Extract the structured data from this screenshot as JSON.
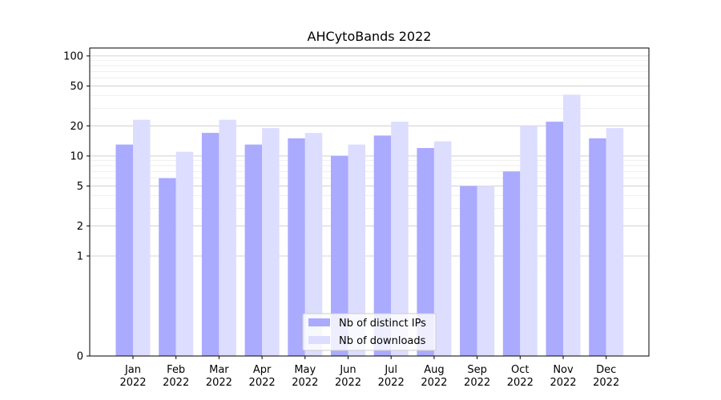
{
  "chart_data": {
    "type": "bar",
    "title": "AHCytoBands 2022",
    "xlabel": "",
    "ylabel": "",
    "yscale": "symlog",
    "ylim": [
      0,
      120
    ],
    "yticks": [
      0,
      1,
      2,
      5,
      10,
      20,
      50,
      100
    ],
    "ytick_labels": [
      "0",
      "1",
      "2",
      "5",
      "10",
      "20",
      "50",
      "100"
    ],
    "categories": [
      [
        "Jan",
        "2022"
      ],
      [
        "Feb",
        "2022"
      ],
      [
        "Mar",
        "2022"
      ],
      [
        "Apr",
        "2022"
      ],
      [
        "May",
        "2022"
      ],
      [
        "Jun",
        "2022"
      ],
      [
        "Jul",
        "2022"
      ],
      [
        "Aug",
        "2022"
      ],
      [
        "Sep",
        "2022"
      ],
      [
        "Oct",
        "2022"
      ],
      [
        "Nov",
        "2022"
      ],
      [
        "Dec",
        "2022"
      ]
    ],
    "series": [
      {
        "name": "Nb of distinct IPs",
        "color": "#aaaaff",
        "values": [
          13,
          6,
          17,
          13,
          15,
          10,
          16,
          12,
          5,
          7,
          22,
          15
        ]
      },
      {
        "name": "Nb of downloads",
        "color": "#ddddff",
        "values": [
          23,
          11,
          23,
          19,
          17,
          13,
          22,
          14,
          5,
          20,
          41,
          19
        ]
      }
    ],
    "grid": "horizontal",
    "legend_position": "bottom-center"
  }
}
